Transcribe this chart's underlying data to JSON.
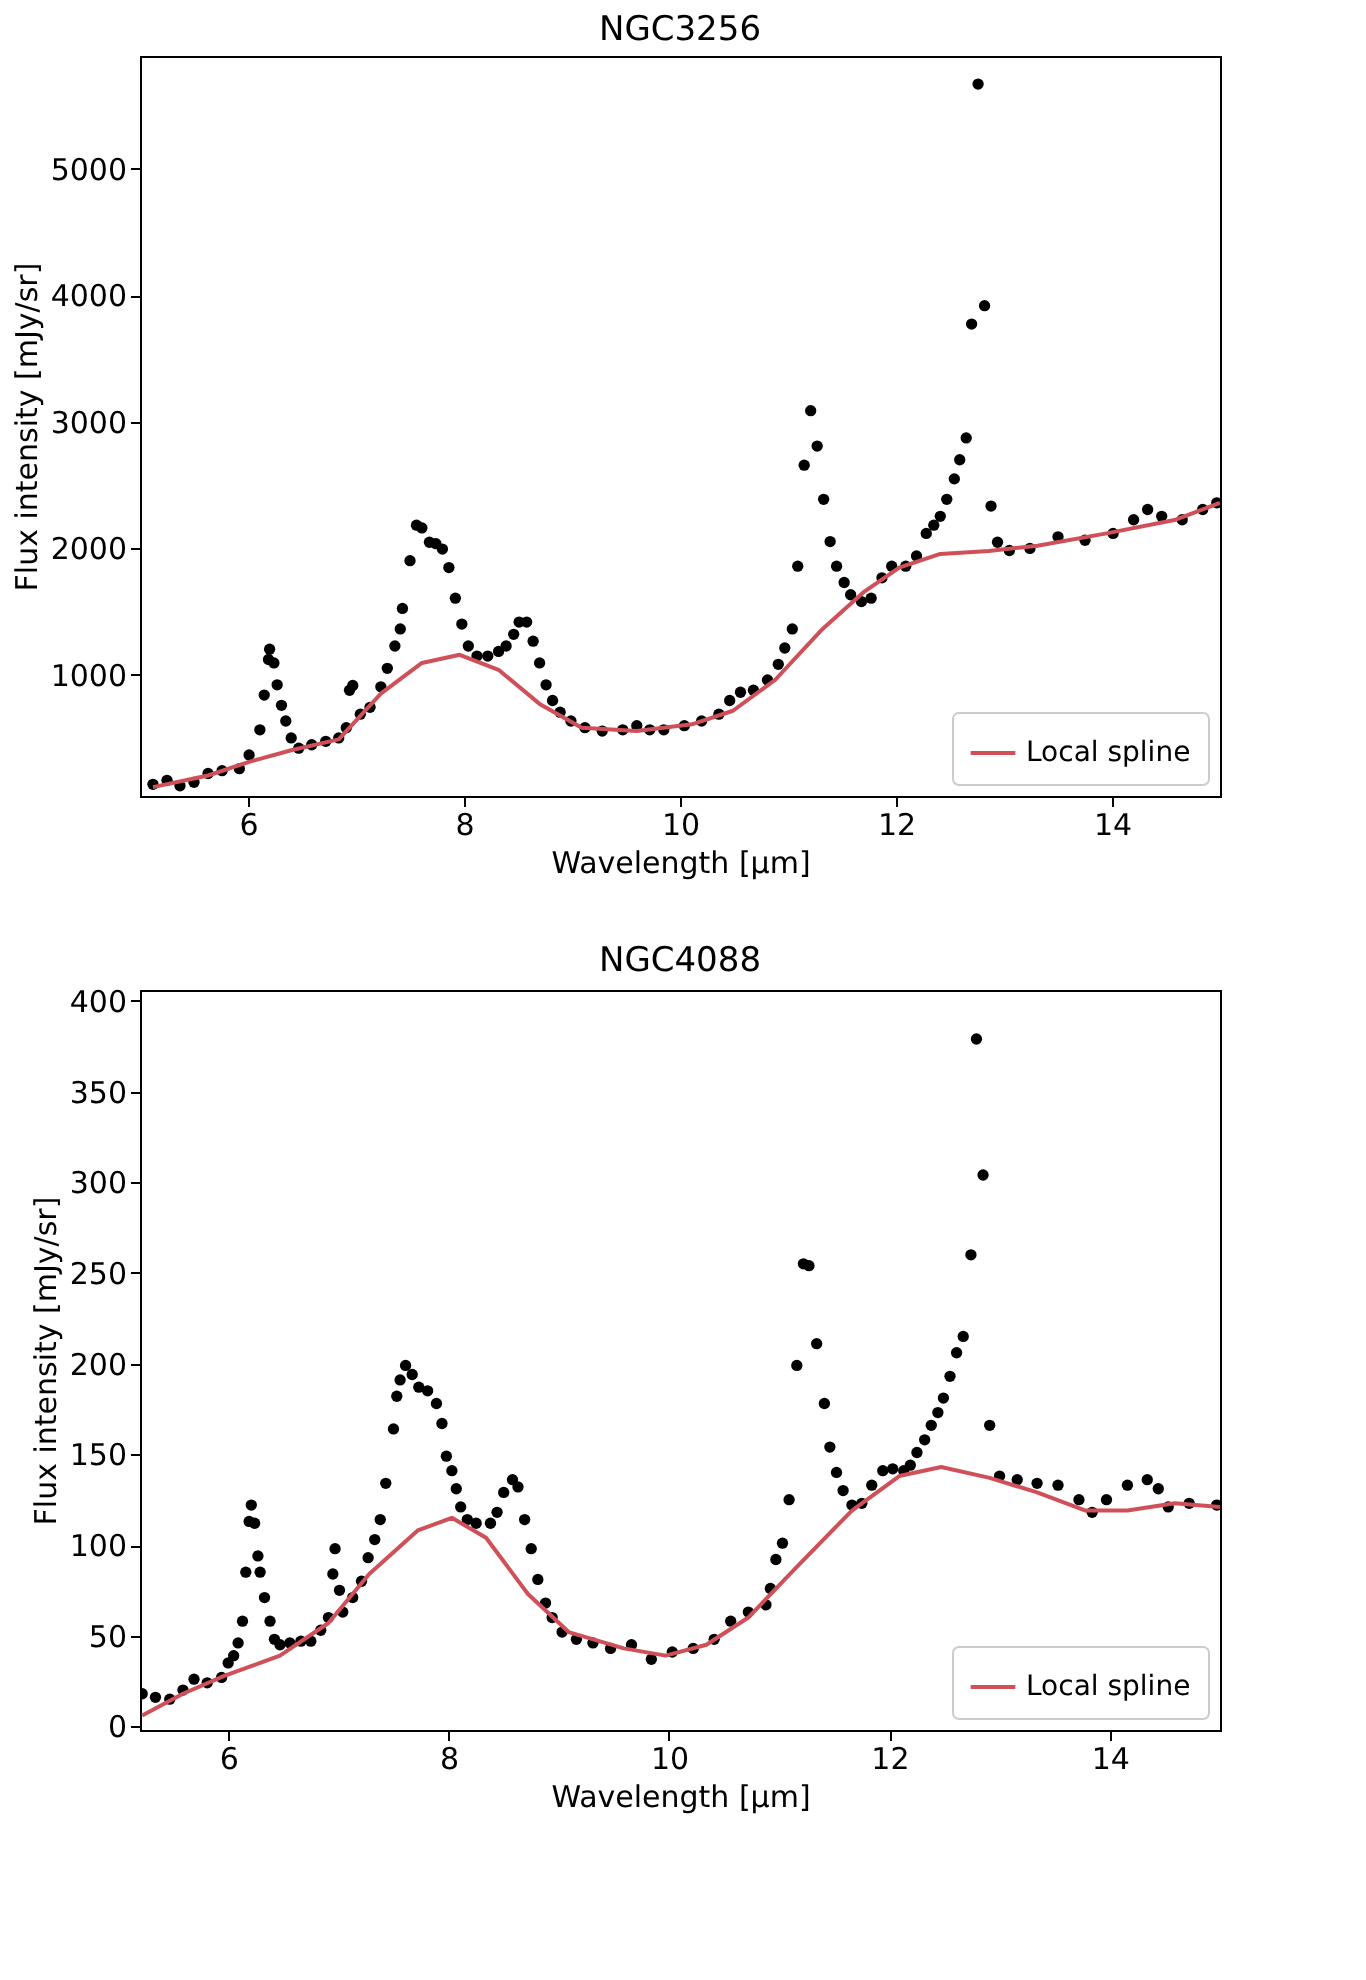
{
  "chart_data": [
    {
      "type": "scatter",
      "title": "NGC3256",
      "xlabel": "Wavelength [μm]",
      "ylabel": "Flux intensity [mJy/sr]",
      "xlim": [
        5.0,
        15.0
      ],
      "ylim": [
        40,
        5890
      ],
      "xticks": [
        6,
        8,
        10,
        12,
        14
      ],
      "yticks": [
        1000,
        2000,
        3000,
        4000,
        5000
      ],
      "grid": false,
      "legend": "bottom right",
      "series": [
        {
          "marker": "circle",
          "color": "#000000",
          "x": [
            5.12,
            5.25,
            5.37,
            5.5,
            5.63,
            5.76,
            5.92,
            6.01,
            6.11,
            6.15,
            6.19,
            6.2,
            6.24,
            6.27,
            6.31,
            6.35,
            6.4,
            6.47,
            6.59,
            6.72,
            6.84,
            6.91,
            6.94,
            6.97,
            7.04,
            7.13,
            7.23,
            7.29,
            7.36,
            7.41,
            7.43,
            7.5,
            7.56,
            7.61,
            7.68,
            7.74,
            7.8,
            7.86,
            7.92,
            7.98,
            8.04,
            8.12,
            8.22,
            8.32,
            8.39,
            8.46,
            8.51,
            8.58,
            8.64,
            8.7,
            8.76,
            8.82,
            8.89,
            8.99,
            9.12,
            9.28,
            9.47,
            9.6,
            9.72,
            9.85,
            10.04,
            10.2,
            10.36,
            10.46,
            10.56,
            10.68,
            10.81,
            10.91,
            10.97,
            11.04,
            11.09,
            11.15,
            11.21,
            11.27,
            11.33,
            11.39,
            11.45,
            11.52,
            11.58,
            11.68,
            11.77,
            11.87,
            11.96,
            12.09,
            12.19,
            12.28,
            12.35,
            12.41,
            12.47,
            12.54,
            12.59,
            12.65,
            12.7,
            12.76,
            12.82,
            12.88,
            12.94,
            13.05,
            13.24,
            13.5,
            13.75,
            14.01,
            14.2,
            14.33,
            14.46,
            14.65,
            14.84,
            14.97
          ],
          "values": [
            132,
            164,
            121,
            148,
            218,
            240,
            256,
            364,
            563,
            838,
            1119,
            1200,
            1092,
            919,
            757,
            633,
            499,
            418,
            445,
            472,
            499,
            580,
            876,
            914,
            687,
            741,
            903,
            1049,
            1226,
            1361,
            1523,
            1900,
            2181,
            2159,
            2046,
            2035,
            1992,
            1846,
            1604,
            1399,
            1226,
            1146,
            1146,
            1183,
            1226,
            1318,
            1415,
            1415,
            1264,
            1092,
            919,
            795,
            703,
            633,
            580,
            553,
            563,
            596,
            563,
            563,
            596,
            633,
            687,
            795,
            860,
            876,
            957,
            1081,
            1210,
            1361,
            1857,
            2655,
            3086,
            2806,
            2385,
            2051,
            1857,
            1728,
            1631,
            1577,
            1604,
            1765,
            1857,
            1857,
            1938,
            2116,
            2181,
            2251,
            2385,
            2547,
            2698,
            2871,
            3771,
            5668,
            3916,
            2332,
            2046,
            1981,
            1997,
            2089,
            2062,
            2116,
            2224,
            2305,
            2251,
            2224,
            2305,
            2358
          ]
        },
        {
          "type": "line",
          "name": "Local spline",
          "color": "#d0505a",
          "line_style": "solid",
          "x": [
            5.12,
            5.63,
            6.01,
            6.4,
            6.84,
            7.23,
            7.61,
            7.96,
            8.32,
            8.7,
            9.09,
            9.6,
            10.11,
            10.49,
            10.88,
            11.32,
            11.71,
            12.03,
            12.41,
            12.86,
            13.31,
            13.95,
            14.59,
            15.0
          ],
          "values": [
            110,
            202,
            310,
            402,
            488,
            849,
            1092,
            1156,
            1038,
            768,
            580,
            553,
            607,
            714,
            957,
            1361,
            1658,
            1846,
            1954,
            1976,
            2019,
            2116,
            2224,
            2358
          ]
        }
      ]
    },
    {
      "type": "scatter",
      "title": "NGC4088",
      "xlabel": "Wavelength [μm]",
      "ylabel": "Flux intensity [mJy/sr]",
      "xlim": [
        5.2,
        15.0
      ],
      "ylim": [
        -2,
        406
      ],
      "xticks": [
        6,
        8,
        10,
        12,
        14
      ],
      "yticks": [
        0,
        50,
        100,
        150,
        200,
        250,
        300,
        350,
        400
      ],
      "grid": false,
      "legend": "bottom right",
      "series": [
        {
          "marker": "circle",
          "color": "#000000",
          "x": [
            5.22,
            5.34,
            5.47,
            5.59,
            5.69,
            5.81,
            5.94,
            6.0,
            6.05,
            6.09,
            6.13,
            6.16,
            6.19,
            6.21,
            6.24,
            6.27,
            6.29,
            6.33,
            6.38,
            6.42,
            6.47,
            6.56,
            6.66,
            6.75,
            6.84,
            6.91,
            6.95,
            6.97,
            7.01,
            7.04,
            7.13,
            7.21,
            7.27,
            7.33,
            7.38,
            7.43,
            7.5,
            7.53,
            7.56,
            7.61,
            7.67,
            7.73,
            7.81,
            7.89,
            7.94,
            7.98,
            8.03,
            8.07,
            8.11,
            8.17,
            8.25,
            8.38,
            8.44,
            8.5,
            8.58,
            8.63,
            8.69,
            8.75,
            8.81,
            8.88,
            8.94,
            9.03,
            9.16,
            9.31,
            9.47,
            9.66,
            9.84,
            10.03,
            10.22,
            10.41,
            10.56,
            10.72,
            10.88,
            10.92,
            10.97,
            11.03,
            11.09,
            11.16,
            11.22,
            11.27,
            11.34,
            11.41,
            11.46,
            11.52,
            11.58,
            11.66,
            11.75,
            11.84,
            11.94,
            12.03,
            12.13,
            12.19,
            12.25,
            12.32,
            12.38,
            12.44,
            12.49,
            12.55,
            12.61,
            12.67,
            12.74,
            12.79,
            12.85,
            12.91,
            13.0,
            13.16,
            13.34,
            13.53,
            13.72,
            13.84,
            13.97,
            14.16,
            14.34,
            14.44,
            14.53,
            14.72,
            14.97
          ],
          "values": [
            18,
            16,
            15,
            20,
            26,
            24,
            27,
            35,
            39,
            46,
            58,
            85,
            113,
            122,
            112,
            94,
            85,
            71,
            58,
            48,
            45,
            46,
            47,
            47,
            53,
            60,
            84,
            98,
            75,
            63,
            71,
            80,
            93,
            103,
            114,
            134,
            164,
            182,
            191,
            199,
            194,
            187,
            185,
            178,
            167,
            149,
            141,
            131,
            121,
            114,
            112,
            112,
            118,
            129,
            136,
            132,
            114,
            98,
            81,
            68,
            60,
            52,
            48,
            46,
            43,
            45,
            37,
            41,
            43,
            48,
            58,
            63,
            67,
            76,
            92,
            101,
            125,
            199,
            255,
            254,
            211,
            178,
            154,
            140,
            130,
            122,
            123,
            133,
            141,
            142,
            141,
            144,
            151,
            158,
            166,
            173,
            181,
            193,
            206,
            215,
            260,
            379,
            304,
            166,
            138,
            136,
            134,
            133,
            125,
            118,
            125,
            133,
            136,
            131,
            121,
            123,
            122
          ]
        },
        {
          "type": "line",
          "name": "Local spline",
          "color": "#d0505a",
          "line_style": "solid",
          "x": [
            5.22,
            5.59,
            5.97,
            6.47,
            6.91,
            7.28,
            7.72,
            8.03,
            8.34,
            8.72,
            9.09,
            9.59,
            9.97,
            10.34,
            10.72,
            11.16,
            11.66,
            12.09,
            12.47,
            12.91,
            13.34,
            13.78,
            14.16,
            14.59,
            15.0
          ],
          "values": [
            6,
            18,
            28,
            39,
            57,
            84,
            108,
            115,
            104,
            73,
            52,
            43,
            39,
            45,
            60,
            88,
            119,
            138,
            143,
            137,
            129,
            119,
            119,
            123,
            121
          ]
        }
      ]
    }
  ]
}
